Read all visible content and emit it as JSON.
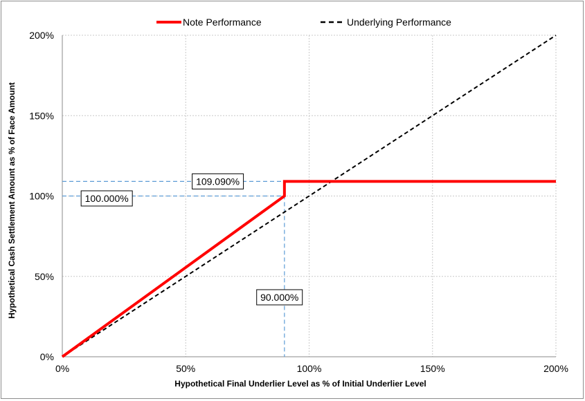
{
  "chart_data": {
    "type": "line",
    "title": "",
    "xlabel": "Hypothetical Final Underlier Level as % of Initial Underlier Level",
    "ylabel": "Hypothetical Cash Settlement Amount as % of Face Amount",
    "xlim": [
      0,
      200
    ],
    "ylim": [
      0,
      200
    ],
    "x_ticks": [
      0,
      50,
      100,
      150,
      200
    ],
    "x_tick_labels": [
      "0%",
      "50%",
      "100%",
      "150%",
      "200%"
    ],
    "y_ticks": [
      0,
      50,
      100,
      150,
      200
    ],
    "y_tick_labels": [
      "0%",
      "50%",
      "100%",
      "150%",
      "200%"
    ],
    "grid": true,
    "legend_position": "top",
    "series": [
      {
        "name": "Note Performance",
        "color": "#ff0000",
        "style": "solid",
        "x": [
          0,
          90,
          90,
          200
        ],
        "y": [
          0,
          100,
          109.09,
          109.09
        ]
      },
      {
        "name": "Underlying Performance",
        "color": "#000000",
        "style": "dashed",
        "x": [
          0,
          200
        ],
        "y": [
          0,
          200
        ]
      }
    ],
    "reference_lines": {
      "color": "#5b9bd5",
      "horizontal": [
        109.09,
        100
      ],
      "vertical": [
        90
      ]
    },
    "annotations": [
      {
        "text": "109.090%",
        "x": 63,
        "y": 109.09
      },
      {
        "text": "100.000%",
        "x": 18,
        "y": 98.5
      },
      {
        "text": "90.000%",
        "x": 88,
        "y": 37
      }
    ]
  }
}
